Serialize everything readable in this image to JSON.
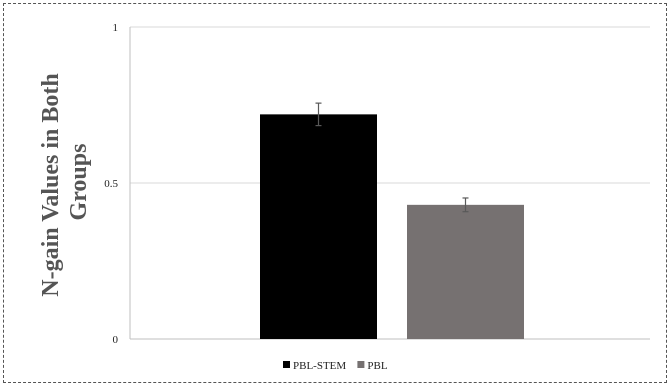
{
  "chart_data": {
    "type": "bar",
    "categories": [
      "PBL-STEM",
      "PBL"
    ],
    "values": [
      0.72,
      0.43
    ],
    "error": [
      0.036,
      0.022
    ],
    "colors": [
      "#000000",
      "#767171"
    ],
    "ylabel_lines": [
      "N-gain Values in Both",
      "Groups"
    ],
    "yticks": [
      0,
      0.5,
      1
    ],
    "ytick_labels": [
      "0",
      "0.5",
      "1"
    ],
    "ylim": [
      0,
      1
    ],
    "grid": true,
    "legend_position": "bottom",
    "legend": [
      {
        "label": "PBL-STEM",
        "color": "#000000"
      },
      {
        "label": "PBL",
        "color": "#767171"
      }
    ]
  }
}
